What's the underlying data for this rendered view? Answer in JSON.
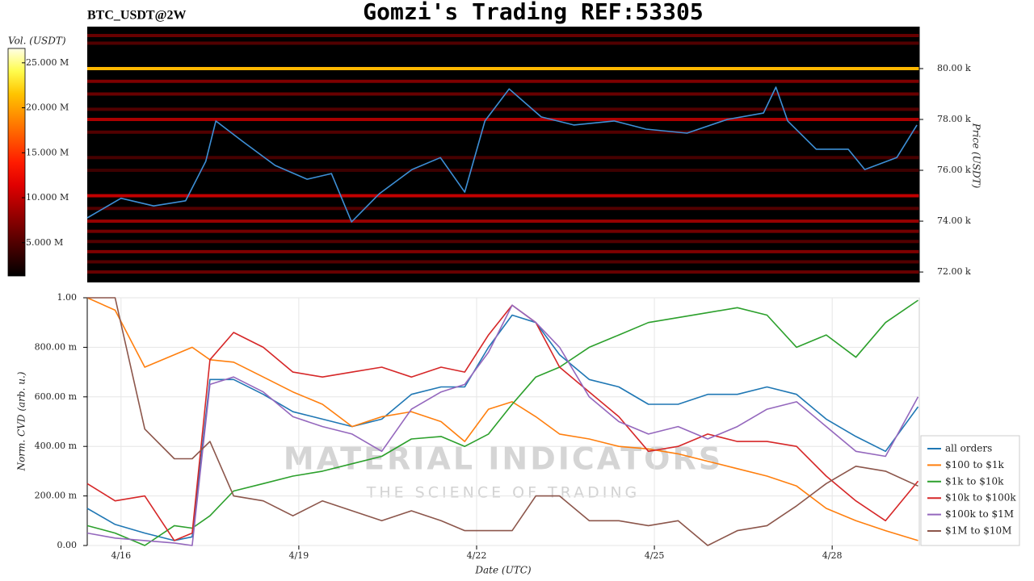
{
  "chart_data": [
    {
      "type": "heatmap",
      "title": "Gomzi's Trading REF:53305",
      "subtitle": "BTC_USDT@2W",
      "y_label": "Price (USDT)",
      "xlim": [
        15.43,
        29.47
      ],
      "ylim": [
        71590,
        81650
      ],
      "yticks": [
        {
          "value": 72000,
          "label": "72.00 k"
        },
        {
          "value": 74000,
          "label": "74.00 k"
        },
        {
          "value": 76000,
          "label": "76.00 k"
        },
        {
          "value": 78000,
          "label": "78.00 k"
        },
        {
          "value": 80000,
          "label": "80.00 k"
        }
      ],
      "x": [
        15.43,
        16.0,
        16.55,
        17.09,
        17.43,
        17.6,
        18.05,
        18.6,
        19.14,
        19.55,
        19.89,
        20.36,
        20.91,
        21.39,
        21.8,
        22.14,
        22.55,
        23.09,
        23.64,
        24.32,
        24.86,
        25.55,
        26.23,
        26.84,
        27.05,
        27.25,
        27.73,
        28.27,
        28.55,
        29.09,
        29.43
      ],
      "values": [
        74130,
        74900,
        74600,
        74800,
        76350,
        77940,
        77140,
        76190,
        75650,
        75870,
        73970,
        75080,
        76030,
        76500,
        75140,
        77940,
        79200,
        78100,
        77780,
        77940,
        77620,
        77460,
        78000,
        78250,
        79270,
        77940,
        76830,
        76830,
        76030,
        76500,
        77780
      ],
      "color": "#3d8fd6",
      "heatmap": {
        "prices": [
          81300,
          81000,
          80000,
          79500,
          79000,
          78400,
          78000,
          77500,
          76500,
          76000,
          75000,
          74500,
          74000,
          73600,
          73200,
          72800,
          72400,
          72000
        ],
        "volumes": [
          6000000,
          5000000,
          21000000,
          7000000,
          6000000,
          5000000,
          9000000,
          5000000,
          4500000,
          4000000,
          10000000,
          5000000,
          8000000,
          6500000,
          5000000,
          7000000,
          5000000,
          6000000
        ]
      },
      "colorbar": {
        "label": "Vol. (USDT)",
        "lim": [
          1300000,
          26600000
        ],
        "ticks": [
          {
            "value": 5000000,
            "label": "5.000 M"
          },
          {
            "value": 10000000,
            "label": "10.000 M"
          },
          {
            "value": 15000000,
            "label": "15.000 M"
          },
          {
            "value": 20000000,
            "label": "20.000 M"
          },
          {
            "value": 25000000,
            "label": "25.000 M"
          }
        ]
      }
    },
    {
      "type": "line",
      "x_label": "Date (UTC)",
      "y_label": "Norm. CVD (arb. u.)",
      "grid": true,
      "legend": "right",
      "watermark": [
        "MATERIAL INDICATORS",
        "THE SCIENCE OF TRADING"
      ],
      "xlim": [
        15.43,
        29.47
      ],
      "ylim": [
        0,
        1
      ],
      "xticks": [
        {
          "value": 16,
          "label": "4/16"
        },
        {
          "value": 19,
          "label": "4/19"
        },
        {
          "value": 22,
          "label": "4/22"
        },
        {
          "value": 25,
          "label": "4/25"
        },
        {
          "value": 28,
          "label": "4/28"
        }
      ],
      "yticks": [
        {
          "value": 0,
          "label": "0.00"
        },
        {
          "value": 0.2,
          "label": "200.00 m"
        },
        {
          "value": 0.4,
          "label": "400.00 m"
        },
        {
          "value": 0.6,
          "label": "600.00 m"
        },
        {
          "value": 0.8,
          "label": "800.00 m"
        },
        {
          "value": 1,
          "label": "1.00"
        }
      ],
      "x": [
        15.43,
        15.9,
        16.4,
        16.9,
        17.2,
        17.5,
        17.9,
        18.4,
        18.9,
        19.4,
        19.9,
        20.4,
        20.9,
        21.4,
        21.8,
        22.2,
        22.6,
        23.0,
        23.4,
        23.9,
        24.4,
        24.9,
        25.4,
        25.9,
        26.4,
        26.9,
        27.4,
        27.9,
        28.4,
        28.9,
        29.45
      ],
      "series": [
        {
          "name": "all orders",
          "color": "#1f77b4",
          "values": [
            0.15,
            0.085,
            0.05,
            0.02,
            0.035,
            0.67,
            0.67,
            0.61,
            0.54,
            0.51,
            0.48,
            0.51,
            0.61,
            0.64,
            0.64,
            0.8,
            0.93,
            0.9,
            0.77,
            0.67,
            0.64,
            0.57,
            0.57,
            0.61,
            0.61,
            0.64,
            0.61,
            0.51,
            0.44,
            0.38,
            0.56
          ]
        },
        {
          "name": "$100 to $1k",
          "color": "#ff7f0e",
          "values": [
            1.0,
            0.95,
            0.72,
            0.77,
            0.8,
            0.75,
            0.74,
            0.68,
            0.62,
            0.57,
            0.48,
            0.52,
            0.54,
            0.5,
            0.42,
            0.55,
            0.58,
            0.52,
            0.45,
            0.43,
            0.4,
            0.39,
            0.37,
            0.34,
            0.31,
            0.28,
            0.24,
            0.15,
            0.1,
            0.06,
            0.02
          ]
        },
        {
          "name": "$1k to $10k",
          "color": "#2ca02c",
          "values": [
            0.08,
            0.05,
            0.0,
            0.08,
            0.07,
            0.12,
            0.22,
            0.25,
            0.28,
            0.3,
            0.33,
            0.36,
            0.43,
            0.44,
            0.4,
            0.45,
            0.57,
            0.68,
            0.72,
            0.8,
            0.85,
            0.9,
            0.92,
            0.94,
            0.96,
            0.93,
            0.8,
            0.85,
            0.76,
            0.9,
            0.99
          ]
        },
        {
          "name": "$10k to $100k",
          "color": "#d62728",
          "values": [
            0.25,
            0.18,
            0.2,
            0.02,
            0.05,
            0.75,
            0.86,
            0.8,
            0.7,
            0.68,
            0.7,
            0.72,
            0.68,
            0.72,
            0.7,
            0.85,
            0.97,
            0.9,
            0.72,
            0.62,
            0.52,
            0.38,
            0.4,
            0.45,
            0.42,
            0.42,
            0.4,
            0.28,
            0.18,
            0.1,
            0.26
          ]
        },
        {
          "name": "$100k to $1M",
          "color": "#9467bd",
          "values": [
            0.05,
            0.03,
            0.02,
            0.01,
            0.0,
            0.65,
            0.68,
            0.62,
            0.52,
            0.48,
            0.45,
            0.38,
            0.55,
            0.62,
            0.65,
            0.78,
            0.97,
            0.9,
            0.8,
            0.6,
            0.5,
            0.45,
            0.48,
            0.43,
            0.48,
            0.55,
            0.58,
            0.48,
            0.38,
            0.36,
            0.6
          ]
        },
        {
          "name": "$1M to $10M",
          "color": "#8c564b",
          "values": [
            1.0,
            1.0,
            0.47,
            0.35,
            0.35,
            0.42,
            0.2,
            0.18,
            0.12,
            0.18,
            0.14,
            0.1,
            0.14,
            0.1,
            0.06,
            0.06,
            0.06,
            0.2,
            0.2,
            0.1,
            0.1,
            0.08,
            0.1,
            0.0,
            0.06,
            0.08,
            0.16,
            0.25,
            0.32,
            0.3,
            0.24
          ]
        }
      ]
    }
  ]
}
